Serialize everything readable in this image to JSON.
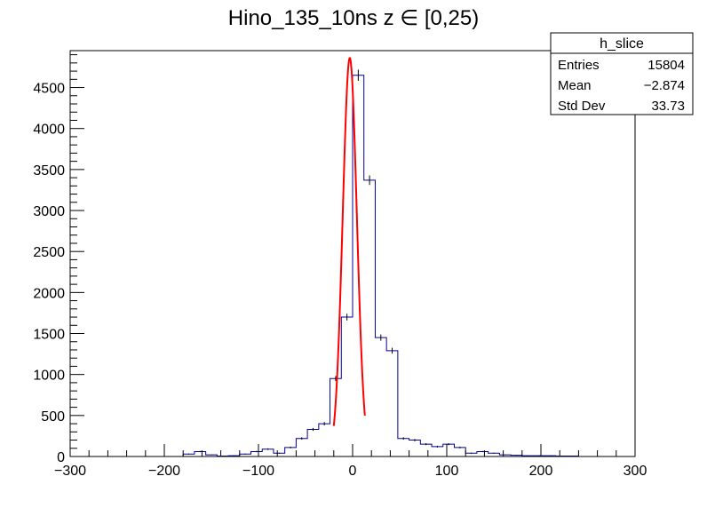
{
  "chart_data": {
    "type": "histogram",
    "title": "Hino_135_10ns z  ∈ [0,25)",
    "xlabel": "",
    "ylabel": "",
    "xlim": [
      -300,
      300
    ],
    "ylim": [
      0,
      4950
    ],
    "bin_width": 12,
    "x_ticks": [
      "−300",
      "−200",
      "−100",
      "0",
      "100",
      "200",
      "300"
    ],
    "x_tick_values": [
      -300,
      -200,
      -100,
      0,
      100,
      200,
      300
    ],
    "y_ticks": [
      "0",
      "500",
      "1000",
      "1500",
      "2000",
      "2500",
      "3000",
      "3500",
      "4000",
      "4500"
    ],
    "y_tick_values": [
      0,
      500,
      1000,
      1500,
      2000,
      2500,
      3000,
      3500,
      4000,
      4500
    ],
    "colors": {
      "histogram": "#000099",
      "fit": "#ff0000",
      "frame": "#000000"
    },
    "series": [
      {
        "bin_edges_start": -300,
        "values": [
          0,
          0,
          0,
          0,
          0,
          0,
          0,
          0,
          0,
          0,
          30,
          60,
          20,
          5,
          10,
          30,
          60,
          90,
          40,
          110,
          220,
          330,
          400,
          950,
          1700,
          4650,
          3370,
          1450,
          1290,
          220,
          200,
          150,
          120,
          150,
          110,
          40,
          60,
          40,
          20,
          15,
          10,
          10,
          10,
          5,
          5,
          0,
          0,
          0,
          0,
          0
        ]
      }
    ],
    "fit": {
      "type": "gaussian",
      "amplitude": 4860,
      "mean": -3,
      "sigma": 7.5,
      "range": [
        -20,
        13
      ]
    },
    "stats_box": {
      "title": "h_slice",
      "rows": [
        {
          "label": "Entries",
          "value": "15804"
        },
        {
          "label": "Mean",
          "value": "−2.874"
        },
        {
          "label": "Std Dev",
          "value": "33.73"
        }
      ]
    }
  }
}
